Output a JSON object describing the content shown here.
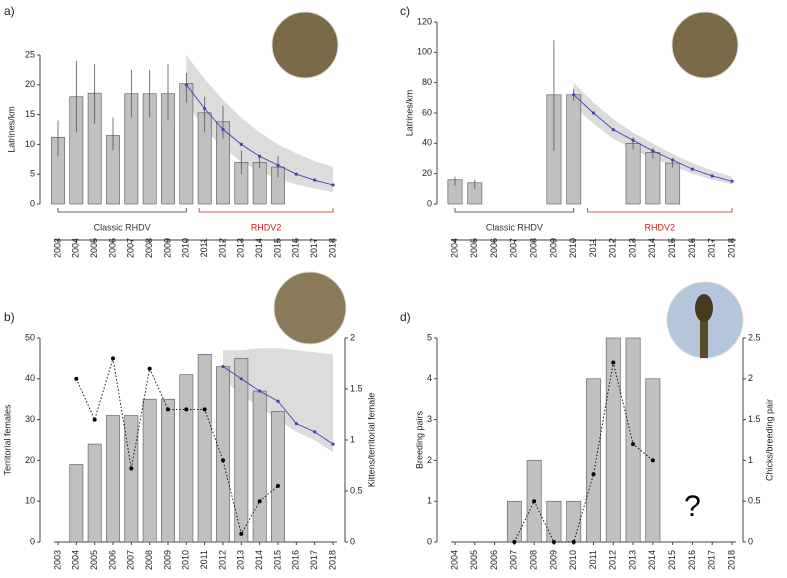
{
  "chart_data": [
    {
      "type": "bar",
      "panel_label": "a)",
      "ylabel": "Latrines/km",
      "categories": [
        "2003",
        "2004",
        "2005",
        "2006",
        "2007",
        "2008",
        "2009",
        "2010",
        "2011",
        "2012",
        "2013",
        "2014",
        "2015",
        "2016",
        "2017",
        "2018"
      ],
      "values": [
        11.2,
        18,
        18.6,
        11.5,
        18.5,
        18.5,
        18.5,
        20.2,
        15.3,
        13.8,
        7,
        7,
        6.2,
        null,
        null,
        null
      ],
      "errors_low": [
        8,
        12,
        13.5,
        9,
        14.5,
        14.5,
        14,
        17,
        12,
        11,
        5,
        6,
        4.5,
        null,
        null,
        null
      ],
      "errors_high": [
        14,
        24,
        23.5,
        14.5,
        22.5,
        22.5,
        23.5,
        22,
        18,
        16.5,
        9,
        8,
        8,
        null,
        null,
        null
      ],
      "color": "#c0c0c0",
      "fit": {
        "x": [
          "2010",
          "2011",
          "2012",
          "2013",
          "2014",
          "2015",
          "2016",
          "2017",
          "2018"
        ],
        "values": [
          20,
          16,
          12.5,
          10,
          8,
          6.5,
          5,
          4,
          3.2
        ],
        "color": "#3c46b4"
      },
      "band": {
        "x": [
          "2010",
          "2011",
          "2012",
          "2013",
          "2014",
          "2015",
          "2016",
          "2017",
          "2018"
        ],
        "upper": [
          25,
          21,
          17.5,
          14.5,
          12,
          10,
          8.5,
          7.2,
          6.2
        ],
        "lower": [
          17,
          12.5,
          9.5,
          7,
          5.5,
          4.2,
          3.3,
          2.6,
          2
        ],
        "color": "#dcdcdc"
      },
      "annotations": [
        {
          "text": "Classic RHDV",
          "color": "#333333"
        },
        {
          "text": "RHDV2",
          "color": "#cc2222"
        }
      ],
      "ylim": [
        0,
        25
      ],
      "yticks": [
        0,
        5,
        10,
        15,
        20,
        25
      ]
    },
    {
      "type": "bar",
      "panel_label": "c)",
      "ylabel": "Latrines/km",
      "categories": [
        "2004",
        "2005",
        "2006",
        "2007",
        "2008",
        "2009",
        "2010",
        "2011",
        "2012",
        "2013",
        "2014",
        "2015",
        "2016",
        "2017",
        "2018"
      ],
      "values": [
        16,
        14,
        null,
        null,
        null,
        72,
        72,
        null,
        null,
        40,
        34,
        27,
        null,
        null,
        null
      ],
      "errors_low": [
        12,
        10,
        null,
        null,
        null,
        35,
        68,
        null,
        null,
        36,
        30,
        24,
        null,
        null,
        null
      ],
      "errors_high": [
        18,
        16,
        null,
        null,
        null,
        108,
        76,
        null,
        null,
        44,
        37,
        30,
        null,
        null,
        null
      ],
      "color": "#c0c0c0",
      "fit": {
        "x": [
          "2010",
          "2011",
          "2012",
          "2013",
          "2014",
          "2015",
          "2016",
          "2017",
          "2018"
        ],
        "values": [
          72,
          60,
          49,
          42,
          35,
          29,
          23,
          18.5,
          15
        ],
        "color": "#3c46b4"
      },
      "band": {
        "x": [
          "2010",
          "2011",
          "2012",
          "2013",
          "2014",
          "2015",
          "2016",
          "2017",
          "2018"
        ],
        "upper": [
          80,
          67,
          56,
          47,
          40,
          33,
          27,
          22,
          18
        ],
        "lower": [
          64,
          53,
          43,
          36,
          30,
          25,
          20,
          16,
          13
        ],
        "color": "#dcdcdc"
      },
      "annotations": [
        {
          "text": "Classic RHDV",
          "color": "#333333"
        },
        {
          "text": "RHDV2",
          "color": "#cc2222"
        }
      ],
      "ylim": [
        0,
        120
      ],
      "yticks": [
        0,
        20,
        40,
        60,
        80,
        100,
        120
      ]
    },
    {
      "type": "bar",
      "panel_label": "b)",
      "ylabel": "Territorial females",
      "y2label": "Kittens/territorial female",
      "categories": [
        "2003",
        "2004",
        "2005",
        "2006",
        "2007",
        "2008",
        "2009",
        "2010",
        "2011",
        "2012",
        "2013",
        "2014",
        "2015",
        "2016",
        "2017",
        "2018"
      ],
      "values": [
        null,
        19,
        24,
        31,
        31,
        35,
        35,
        41,
        46,
        43,
        45,
        37,
        32,
        null,
        null,
        null
      ],
      "color": "#c0c0c0",
      "y2_values": [
        null,
        1.6,
        1.2,
        1.8,
        0.72,
        1.7,
        1.3,
        1.3,
        1.3,
        0.8,
        0.08,
        0.4,
        0.55,
        null,
        null,
        null
      ],
      "fit": {
        "x": [
          "2012",
          "2013",
          "2014",
          "2015",
          "2016",
          "2017",
          "2018"
        ],
        "values": [
          43,
          40,
          37,
          34.5,
          29,
          27,
          24
        ],
        "color": "#3c46b4"
      },
      "band": {
        "x": [
          "2012",
          "2013",
          "2014",
          "2015",
          "2016",
          "2017",
          "2018"
        ],
        "upper": [
          47,
          47,
          47.5,
          47.5,
          47,
          46.5,
          46
        ],
        "lower": [
          40,
          36,
          33,
          30,
          27,
          25,
          22
        ],
        "color": "#dcdcdc"
      },
      "ylim": [
        0,
        50
      ],
      "yticks": [
        0,
        10,
        20,
        30,
        40,
        50
      ],
      "y2lim": [
        0,
        2
      ],
      "y2ticks": [
        0,
        0.5,
        1,
        1.5,
        2
      ]
    },
    {
      "type": "bar",
      "panel_label": "d)",
      "ylabel": "Breeding pairs",
      "y2label": "Chicks/breeding pair",
      "categories": [
        "2004",
        "2005",
        "2006",
        "2007",
        "2008",
        "2009",
        "2010",
        "2011",
        "2012",
        "2013",
        "2014",
        "2015",
        "2016",
        "2017",
        "2018"
      ],
      "values": [
        0,
        0,
        0,
        1,
        2,
        1,
        1,
        4,
        5,
        5,
        4,
        null,
        null,
        null,
        null
      ],
      "color": "#c0c0c0",
      "y2_values": [
        null,
        null,
        null,
        0,
        0.5,
        0,
        0,
        0.83,
        2.2,
        1.2,
        1,
        null,
        null,
        null,
        null
      ],
      "annotations": [
        {
          "text": "?",
          "color": "#000000"
        }
      ],
      "ylim": [
        0,
        5
      ],
      "yticks": [
        0,
        1,
        2,
        3,
        4,
        5
      ],
      "y2lim": [
        0,
        2.5
      ],
      "y2ticks": [
        0,
        0.5,
        1,
        1.5,
        2,
        2.5
      ]
    }
  ]
}
